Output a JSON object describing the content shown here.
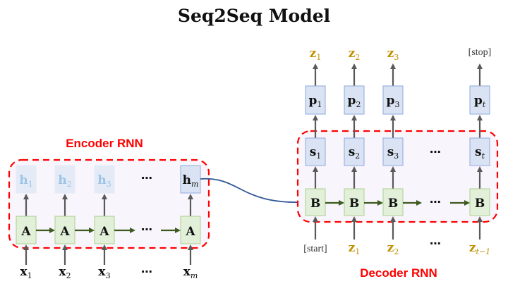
{
  "title": "Seq2Seq Model",
  "encoder": {
    "label": "Encoder RNN",
    "cell": "A",
    "hidden": [
      {
        "base": "h",
        "sub": "1"
      },
      {
        "base": "h",
        "sub": "2"
      },
      {
        "base": "h",
        "sub": "3"
      },
      {
        "base": "h",
        "sub": "m"
      }
    ],
    "inputs": [
      {
        "base": "x",
        "sub": "1"
      },
      {
        "base": "x",
        "sub": "2"
      },
      {
        "base": "x",
        "sub": "3"
      },
      {
        "base": "x",
        "sub": "m"
      }
    ],
    "ellipsis": "⋯"
  },
  "decoder": {
    "label": "Decoder RNN",
    "cell": "B",
    "states": [
      {
        "base": "s",
        "sub": "1"
      },
      {
        "base": "s",
        "sub": "2"
      },
      {
        "base": "s",
        "sub": "3"
      },
      {
        "base": "s",
        "sub": "t"
      }
    ],
    "probs": [
      {
        "base": "p",
        "sub": "1"
      },
      {
        "base": "p",
        "sub": "2"
      },
      {
        "base": "p",
        "sub": "3"
      },
      {
        "base": "p",
        "sub": "t"
      }
    ],
    "outputs": [
      {
        "base": "z",
        "sub": "1"
      },
      {
        "base": "z",
        "sub": "2"
      },
      {
        "base": "z",
        "sub": "3"
      },
      {
        "text": "[stop]"
      }
    ],
    "inputs": [
      {
        "text": "[start]"
      },
      {
        "base": "z",
        "sub": "1"
      },
      {
        "base": "z",
        "sub": "2"
      },
      {
        "base": "z",
        "sub": "t−1"
      }
    ],
    "ellipsis": "⋯"
  },
  "colors": {
    "dashed_border": "#ff0000",
    "region_fill": "#f9f5fc",
    "cell_fill": "#e2efd9",
    "cell_stroke": "#a9d18e",
    "state_fill": "#dae3f3",
    "state_stroke": "#8faadc",
    "faded_text": "#9dc3e6",
    "token_color": "#bf9000",
    "recurrent_arrow": "#3d5a1f",
    "link_arrow": "#2f5597"
  }
}
